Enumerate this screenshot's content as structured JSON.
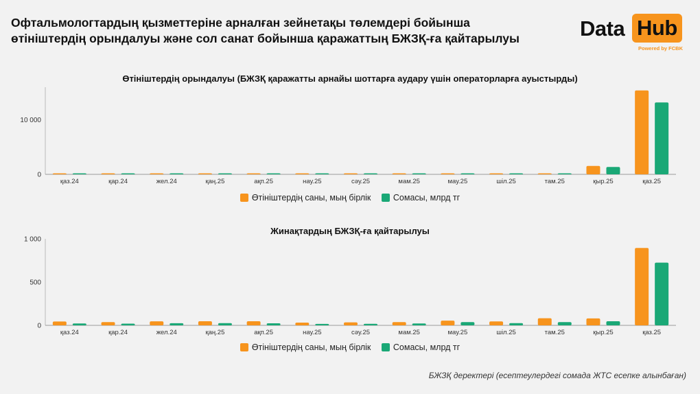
{
  "header": {
    "title": "Офтальмологтардың қызметтеріне арналған зейнетақы төлемдері бойынша өтініштердің орындалуы және сол санат бойынша қаражаттың БЖЗҚ-ға қайтарылуы"
  },
  "logo": {
    "word1": "Data",
    "word2": "Hub",
    "powered": "Powered by FCBK"
  },
  "footer": {
    "source": "БЖЗҚ деректері (есептеулердегі сомада ЖТС есепке алынбаған)"
  },
  "colors": {
    "orange": "#f7941d",
    "green": "#1aa876"
  },
  "chart_data": [
    {
      "type": "bar",
      "title": "Өтініштердің орындалуы (БЖЗҚ қаражатты арнайы шоттарға аудару үшін операторларға ауыстырды)",
      "categories": [
        "қаз.24",
        "қар.24",
        "жел.24",
        "қаң.25",
        "ақп.25",
        "нау.25",
        "сәу.25",
        "мам.25",
        "мау.25",
        "шіл.25",
        "там.25",
        "қыр.25",
        "қаз.25"
      ],
      "series": [
        {
          "name": "Өтініштердің саны, мың бірлік",
          "color": "#f7941d",
          "values": [
            150,
            140,
            150,
            140,
            140,
            90,
            90,
            90,
            90,
            150,
            170,
            1550,
            15400
          ]
        },
        {
          "name": "Сомасы, млрд тг",
          "color": "#1aa876",
          "values": [
            60,
            60,
            70,
            60,
            70,
            40,
            40,
            40,
            50,
            70,
            80,
            1350,
            13200
          ]
        }
      ],
      "yticks": [
        {
          "value": 0,
          "label": "0"
        },
        {
          "value": 10000,
          "label": "10 000"
        }
      ],
      "ylim": [
        0,
        16000
      ],
      "xlabel": "",
      "ylabel": ""
    },
    {
      "type": "bar",
      "title": "Жинақтардың БЖЗҚ-ға қайтарылуы",
      "categories": [
        "қаз.24",
        "қар.24",
        "жел.24",
        "қаң.25",
        "ақп.25",
        "нау.25",
        "сәу.25",
        "мам.25",
        "мау.25",
        "шіл.25",
        "там.25",
        "қыр.25",
        "қаз.25"
      ],
      "series": [
        {
          "name": "Өтініштердің саны, мың бірлік",
          "color": "#f7941d",
          "values": [
            45,
            38,
            47,
            48,
            48,
            32,
            35,
            38,
            55,
            46,
            82,
            80,
            895
          ]
        },
        {
          "name": "Сомасы, млрд тг",
          "color": "#1aa876",
          "values": [
            22,
            20,
            25,
            26,
            24,
            17,
            18,
            22,
            38,
            26,
            38,
            48,
            725
          ]
        }
      ],
      "yticks": [
        {
          "value": 0,
          "label": "0"
        },
        {
          "value": 500,
          "label": "500"
        },
        {
          "value": 1000,
          "label": "1 000"
        }
      ],
      "ylim": [
        0,
        1000
      ],
      "xlabel": "",
      "ylabel": ""
    }
  ]
}
